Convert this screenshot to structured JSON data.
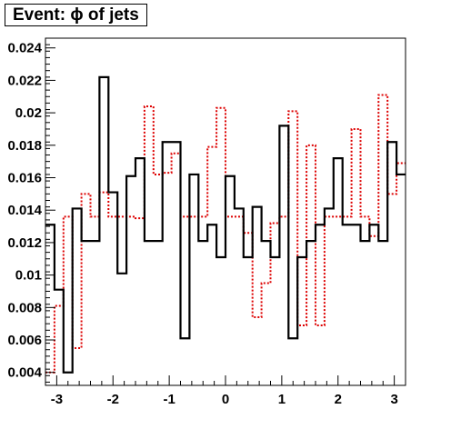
{
  "chart_data": {
    "type": "histogram",
    "title": "Event: ϕ of jets",
    "xlabel": "",
    "ylabel": "",
    "xlim": [
      -3.2,
      3.2
    ],
    "ylim": [
      0.0032,
      0.0246
    ],
    "x_ticks": [
      -3,
      -2,
      -1,
      0,
      1,
      2,
      3
    ],
    "x_tick_labels": [
      "-3",
      "-2",
      "-1",
      "0",
      "1",
      "2",
      "3"
    ],
    "y_ticks": [
      0.004,
      0.006,
      0.008,
      0.01,
      0.012,
      0.014,
      0.016,
      0.018,
      0.02,
      0.022,
      0.024
    ],
    "y_tick_labels": [
      "0.004",
      "0.006",
      "0.008",
      "0.01",
      "0.012",
      "0.014",
      "0.016",
      "0.018",
      "0.02",
      "0.022",
      "0.024"
    ],
    "grid": false,
    "legend": null,
    "bin_edges": [
      -3.2,
      -3.04,
      -2.88,
      -2.72,
      -2.56,
      -2.4,
      -2.24,
      -2.08,
      -1.92,
      -1.76,
      -1.6,
      -1.44,
      -1.28,
      -1.12,
      -0.96,
      -0.8,
      -0.64,
      -0.48,
      -0.32,
      -0.16,
      0.0,
      0.16,
      0.32,
      0.48,
      0.64,
      0.8,
      0.96,
      1.12,
      1.28,
      1.44,
      1.6,
      1.76,
      1.92,
      2.08,
      2.24,
      2.4,
      2.56,
      2.72,
      2.88,
      3.04,
      3.2
    ],
    "series": [
      {
        "color": "#000000",
        "style": "solid",
        "values": [
          0.0131,
          0.0091,
          0.004,
          0.0141,
          0.0121,
          0.0121,
          0.0222,
          0.0151,
          0.0101,
          0.0161,
          0.0172,
          0.0121,
          0.0121,
          0.0182,
          0.0182,
          0.0061,
          0.0162,
          0.0121,
          0.0131,
          0.0111,
          0.0161,
          0.0141,
          0.0111,
          0.0142,
          0.0121,
          0.0111,
          0.0192,
          0.0061,
          0.0111,
          0.0121,
          0.0131,
          0.0141,
          0.0172,
          0.0131,
          0.0131,
          0.0121,
          0.0131,
          0.0121,
          0.0182,
          0.0162
        ]
      },
      {
        "color": "#dd0000",
        "style": "dotted",
        "values": [
          0.004,
          0.0081,
          0.0136,
          0.0055,
          0.015,
          0.0136,
          0.0151,
          0.0136,
          0.0136,
          0.0136,
          0.0135,
          0.0204,
          0.0162,
          0.0163,
          0.0175,
          0.0136,
          0.0136,
          0.0136,
          0.0179,
          0.0203,
          0.0136,
          0.0136,
          0.0126,
          0.0074,
          0.0095,
          0.0132,
          0.0136,
          0.0201,
          0.0069,
          0.018,
          0.0069,
          0.0136,
          0.0136,
          0.0136,
          0.019,
          0.0136,
          0.0124,
          0.0211,
          0.015,
          0.0169
        ]
      }
    ]
  }
}
